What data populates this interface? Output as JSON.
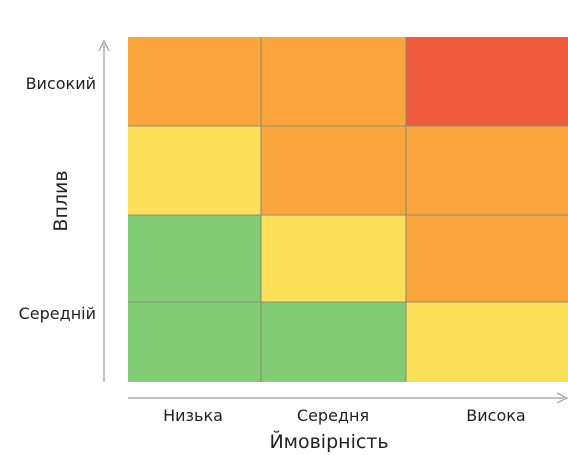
{
  "chart_data": {
    "type": "heatmap",
    "title": "",
    "xlabel": "Ймовірність",
    "ylabel": "Вплив",
    "x_categories": [
      "Низька",
      "Середня",
      "Висока"
    ],
    "y_tick_labels": [
      "Високий",
      "Середній"
    ],
    "rows": 4,
    "cols": 3,
    "grid": true,
    "legend": "none",
    "level_colors": {
      "low": "#82cc75",
      "medium": "#fde05a",
      "high": "#fba63d",
      "critical": "#f15b3d"
    },
    "cells": [
      [
        "high",
        "high",
        "critical"
      ],
      [
        "medium",
        "high",
        "high"
      ],
      [
        "low",
        "medium",
        "high"
      ],
      [
        "low",
        "low",
        "medium"
      ]
    ]
  }
}
